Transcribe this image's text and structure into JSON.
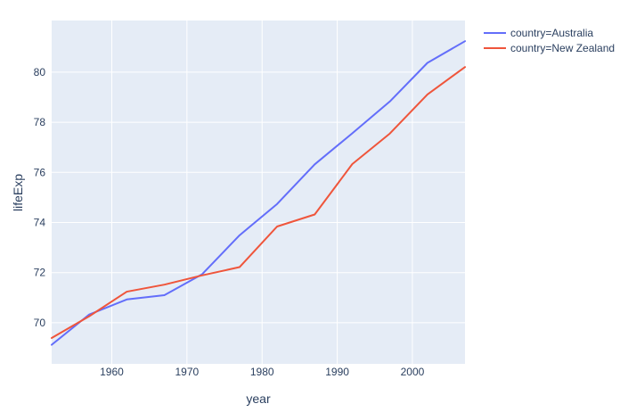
{
  "chart_data": {
    "type": "line",
    "title": "",
    "xlabel": "year",
    "ylabel": "lifeExp",
    "x": [
      1952,
      1957,
      1962,
      1967,
      1972,
      1977,
      1982,
      1987,
      1992,
      1997,
      2002,
      2007
    ],
    "series": [
      {
        "name": "country=Australia",
        "color": "#636EFA",
        "values": [
          69.12,
          70.33,
          70.93,
          71.1,
          71.93,
          73.49,
          74.74,
          76.32,
          77.56,
          78.83,
          80.37,
          81.235
        ]
      },
      {
        "name": "country=New Zealand",
        "color": "#EF553B",
        "values": [
          69.39,
          70.26,
          71.24,
          71.52,
          71.89,
          72.22,
          73.84,
          74.32,
          76.33,
          77.55,
          79.11,
          80.204
        ]
      }
    ],
    "xlim": [
      1952,
      2007
    ],
    "ylim": [
      68.36,
      82.06
    ],
    "xticks": [
      1960,
      1970,
      1980,
      1990,
      2000
    ],
    "yticks": [
      70,
      72,
      74,
      76,
      78,
      80
    ],
    "grid": true,
    "legend_position": "right-top",
    "colors": {
      "plot_background": "#E5ECF6",
      "grid": "#FFFFFF",
      "text": "#2A3F5F"
    }
  }
}
